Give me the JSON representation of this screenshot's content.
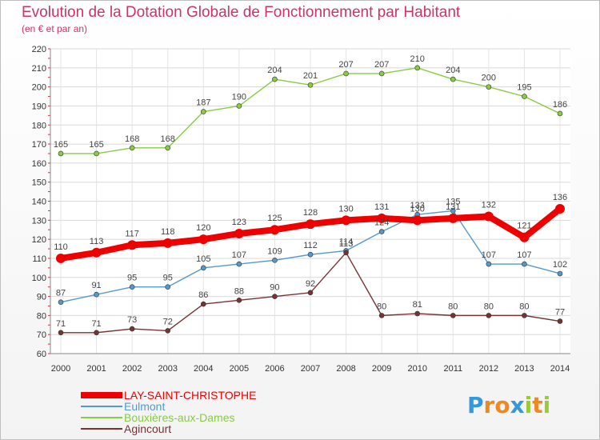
{
  "chart_data": {
    "type": "line",
    "title": "Evolution de la Dotation Globale de Fonctionnement par Habitant",
    "subtitle": "(en € et par an)",
    "xlabel": "",
    "ylabel": "",
    "x": [
      "2000",
      "2001",
      "2002",
      "2003",
      "2004",
      "2005",
      "2006",
      "2007",
      "2008",
      "2009",
      "2010",
      "2011",
      "2012",
      "2013",
      "2014"
    ],
    "ylim": [
      60,
      220
    ],
    "yticks": [
      60,
      70,
      80,
      90,
      100,
      110,
      120,
      130,
      140,
      150,
      160,
      170,
      180,
      190,
      200,
      210,
      220
    ],
    "grid": true,
    "legend_position": "bottom-left",
    "series": [
      {
        "name": "Bouxières-aux-Dames",
        "color": "#88cc44",
        "values": [
          165,
          165,
          168,
          168,
          187,
          190,
          204,
          201,
          207,
          207,
          210,
          204,
          200,
          195,
          186
        ]
      },
      {
        "name": "Eulmont",
        "color": "#5599cc",
        "values": [
          87,
          91,
          95,
          95,
          105,
          107,
          109,
          112,
          114,
          124,
          133,
          135,
          107,
          107,
          102
        ]
      },
      {
        "name": "Agincourt",
        "color": "#773333",
        "values": [
          71,
          71,
          73,
          72,
          86,
          88,
          90,
          92,
          113,
          80,
          81,
          80,
          80,
          80,
          77
        ]
      },
      {
        "name": "LAY-SAINT-CHRISTOPHE",
        "color": "#ee0000",
        "emphasis": true,
        "values": [
          110,
          113,
          117,
          118,
          120,
          123,
          125,
          128,
          130,
          131,
          130,
          131,
          132,
          121,
          136
        ]
      }
    ],
    "legend_order": [
      "LAY-SAINT-CHRISTOPHE",
      "Eulmont",
      "Bouxières-aux-Dames",
      "Agincourt"
    ]
  },
  "logo": {
    "letters": [
      "P",
      "r",
      "o",
      "x",
      "i",
      "t",
      "i"
    ],
    "colors": [
      "#3399dd",
      "#ee8822",
      "#ee8822",
      "#3399dd",
      "#99cc33",
      "#ee8822",
      "#99cc33"
    ]
  }
}
